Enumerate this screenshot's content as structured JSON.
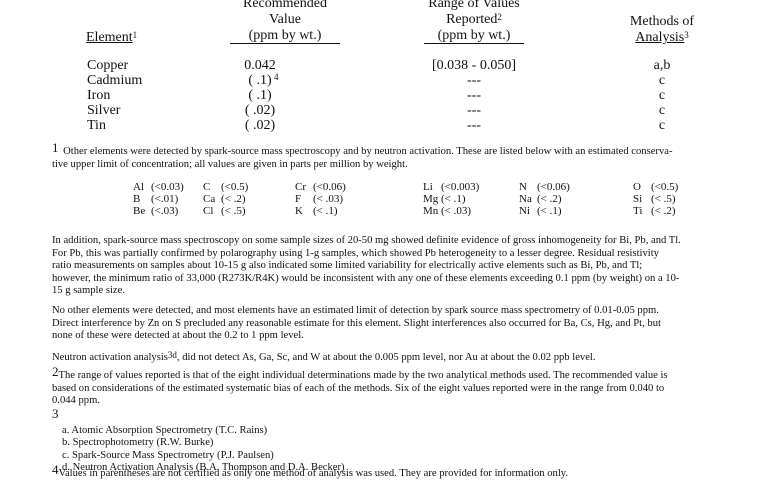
{
  "table": {
    "headers": {
      "element": {
        "label": "Element",
        "sup": "1"
      },
      "value": {
        "line1": "Recommended",
        "line2": "Value",
        "line3": "(ppm by wt.)"
      },
      "range": {
        "line1": "Range of Values",
        "line2": "Reported",
        "sup": "2",
        "line3": "(ppm by wt.)"
      },
      "methods": {
        "line1": "Methods of",
        "line2": "Analysis",
        "sup": "3"
      }
    },
    "rows": [
      {
        "element": "Copper",
        "value": "0.042",
        "sup": "",
        "range": "[0.038 - 0.050]",
        "methods": "a,b"
      },
      {
        "element": "Cadmium",
        "value": "( .1)",
        "sup": "4",
        "range": "---",
        "methods": "c"
      },
      {
        "element": "Iron",
        "value": "( .1)",
        "sup": "",
        "range": "---",
        "methods": "c"
      },
      {
        "element": "Silver",
        "value": "( .02)",
        "sup": "",
        "range": "---",
        "methods": "c"
      },
      {
        "element": "Tin",
        "value": "( .02)",
        "sup": "",
        "range": "---",
        "methods": "c"
      }
    ]
  },
  "footnote1": {
    "mark": "1",
    "lines": [
      "Other elements were detected by spark-source mass spectroscopy and by  neutron activation.  These are listed below with an estimated conserva-",
      "tive upper limit of concentration; all values are given in parts per million by weight."
    ]
  },
  "other_elements": [
    [
      {
        "el": "Al",
        "v": "(<0.03)"
      },
      {
        "el": "B",
        "v": "(<.01)"
      },
      {
        "el": "Be",
        "v": "(<.03)"
      }
    ],
    [
      {
        "el": "C",
        "v": "(<0.5)"
      },
      {
        "el": "Ca",
        "v": "(< .2)"
      },
      {
        "el": "Cl",
        "v": "(< .5)"
      }
    ],
    [
      {
        "el": "Cr",
        "v": "(<0.06)"
      },
      {
        "el": "F",
        "v": "(< .03)"
      },
      {
        "el": "K",
        "v": "(< .1)"
      }
    ],
    [
      {
        "el": "Li",
        "v": "(<0.003)"
      },
      {
        "el": "Mg",
        "v": "(< .1)"
      },
      {
        "el": "Mn",
        "v": "(< .03)"
      }
    ],
    [
      {
        "el": "N",
        "v": "(<0.06)"
      },
      {
        "el": "Na",
        "v": "(< .2)"
      },
      {
        "el": "Ni",
        "v": "(< .1)"
      }
    ],
    [
      {
        "el": "O",
        "v": "(<0.5)"
      },
      {
        "el": "Si",
        "v": "(< .5)"
      },
      {
        "el": "Ti",
        "v": "(< .2)"
      }
    ]
  ],
  "para_inhomogeneity": [
    "In addition, spark-source mass spectroscopy on some sample sizes of 20-50 mg showed definite evidence of gross inhomogeneity for Bi, Pb, and Tl.",
    "For Pb, this was partially confirmed by polarography using 1-g samples, which showed Pb heterogeneity to a lesser degree.  Residual resistivity",
    "ratio measurements on samples about 10-15 g also indicated some limited variability for electrically active elements such as Bi, Pb, and Tl;",
    "however, the minimum ratio of 33,000 (R273K/R4K) would be inconsistent with any one of these elements exceeding 0.1 ppm (by weight) on a 10-",
    "15 g sample size."
  ],
  "para_no_other": [
    "No other elements were detected, and most elements have an estimated limit of detection by spark source mass spectrometry of 0.01-0.05 ppm.",
    "Direct interference by Zn on S precluded any reasonable estimate for this element.  Slight interferences also occurred for Ba, Cs, Hg, and Pt, but",
    "none of these were detected at about the 0.2 to 1 ppm level."
  ],
  "para_neutron": {
    "before": "Neutron activation analysis",
    "sup": "3d",
    "after": ", did not detect As, Ga, Sc, and W at about the 0.005 ppm level, nor Au at about the 0.02 ppb level."
  },
  "footnote2": {
    "mark": "2",
    "lines": [
      "The range of values reported is that of the eight individual determinations made by the two analytical methods used.  The recommended value is",
      "based on considerations of the estimated systematic bias of each of the methods.  Six of the eight values reported were in the range from 0.040 to",
      "0.044 ppm."
    ]
  },
  "footnote3": {
    "mark": "3",
    "items": [
      "a. Atomic Absorption Spectrometry (T.C. Rains)",
      "b. Spectrophotometry (R.W. Burke)",
      "c. Spark-Source Mass Spectrometry (P.J. Paulsen)",
      "d. Neutron Activation Analysis (B.A. Thompson and D.A. Becker)"
    ]
  },
  "footnote4": {
    "mark": "4",
    "text": "Values in parentheses are not certified as only one method of analysis was used.  They are provided for information only."
  }
}
